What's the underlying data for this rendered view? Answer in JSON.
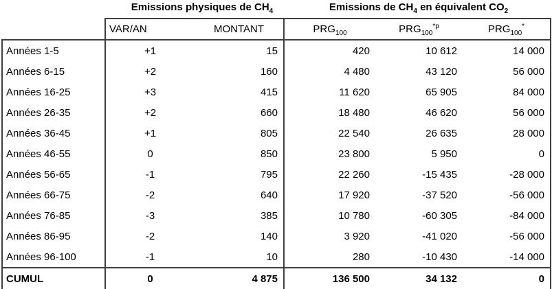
{
  "titles": {
    "left": {
      "text": "Emissions physiques de CH",
      "sub": "4"
    },
    "right": {
      "part1": "Emissions de CH",
      "sub1": "4",
      "part2": " en équivalent CO",
      "sub2": "2"
    }
  },
  "headers": {
    "var_an": "VAR/AN",
    "montant": "MONTANT",
    "prg100": {
      "base": "PRG",
      "sub": "100"
    },
    "prg100_star_p": {
      "base": "PRG",
      "sub": "100",
      "sup": "*p"
    },
    "prg100_star": {
      "base": "PRG",
      "sub": "100",
      "sup": "*"
    }
  },
  "rows": [
    {
      "label": "Années 1-5",
      "var_an": "+1",
      "montant": "15",
      "prg100": "420",
      "prg100_star_p": "10 612",
      "prg100_star": "14 000"
    },
    {
      "label": "Années 6-15",
      "var_an": "+2",
      "montant": "160",
      "prg100": "4 480",
      "prg100_star_p": "43 120",
      "prg100_star": "56 000"
    },
    {
      "label": "Années 16-25",
      "var_an": "+3",
      "montant": "415",
      "prg100": "11 620",
      "prg100_star_p": "65 905",
      "prg100_star": "84 000"
    },
    {
      "label": "Années 26-35",
      "var_an": "+2",
      "montant": "660",
      "prg100": "18 480",
      "prg100_star_p": "46 620",
      "prg100_star": "56 000"
    },
    {
      "label": "Années 36-45",
      "var_an": "+1",
      "montant": "805",
      "prg100": "22 540",
      "prg100_star_p": "26 635",
      "prg100_star": "28 000"
    },
    {
      "label": "Années 46-55",
      "var_an": "0",
      "montant": "850",
      "prg100": "23 800",
      "prg100_star_p": "5 950",
      "prg100_star": "0"
    },
    {
      "label": "Années 56-65",
      "var_an": "-1",
      "montant": "795",
      "prg100": "22 260",
      "prg100_star_p": "-15 435",
      "prg100_star": "-28 000"
    },
    {
      "label": "Années 66-75",
      "var_an": "-2",
      "montant": "640",
      "prg100": "17 920",
      "prg100_star_p": "-37 520",
      "prg100_star": "-56 000"
    },
    {
      "label": "Années 76-85",
      "var_an": "-3",
      "montant": "385",
      "prg100": "10 780",
      "prg100_star_p": "-60 305",
      "prg100_star": "-84 000"
    },
    {
      "label": "Années 86-95",
      "var_an": "-2",
      "montant": "140",
      "prg100": "3 920",
      "prg100_star_p": "-41 020",
      "prg100_star": "-56 000"
    },
    {
      "label": "Années 96-100",
      "var_an": "-1",
      "montant": "10",
      "prg100": "280",
      "prg100_star_p": "-10 430",
      "prg100_star": "-14 000"
    }
  ],
  "cumul": {
    "label": "CUMUL",
    "var_an": "0",
    "montant": "4 875",
    "prg100": "136 500",
    "prg100_star_p": "34 132",
    "prg100_star": "0"
  },
  "colors": {
    "border": "#3f3f3f",
    "text": "#000000",
    "background": "#ffffff"
  }
}
